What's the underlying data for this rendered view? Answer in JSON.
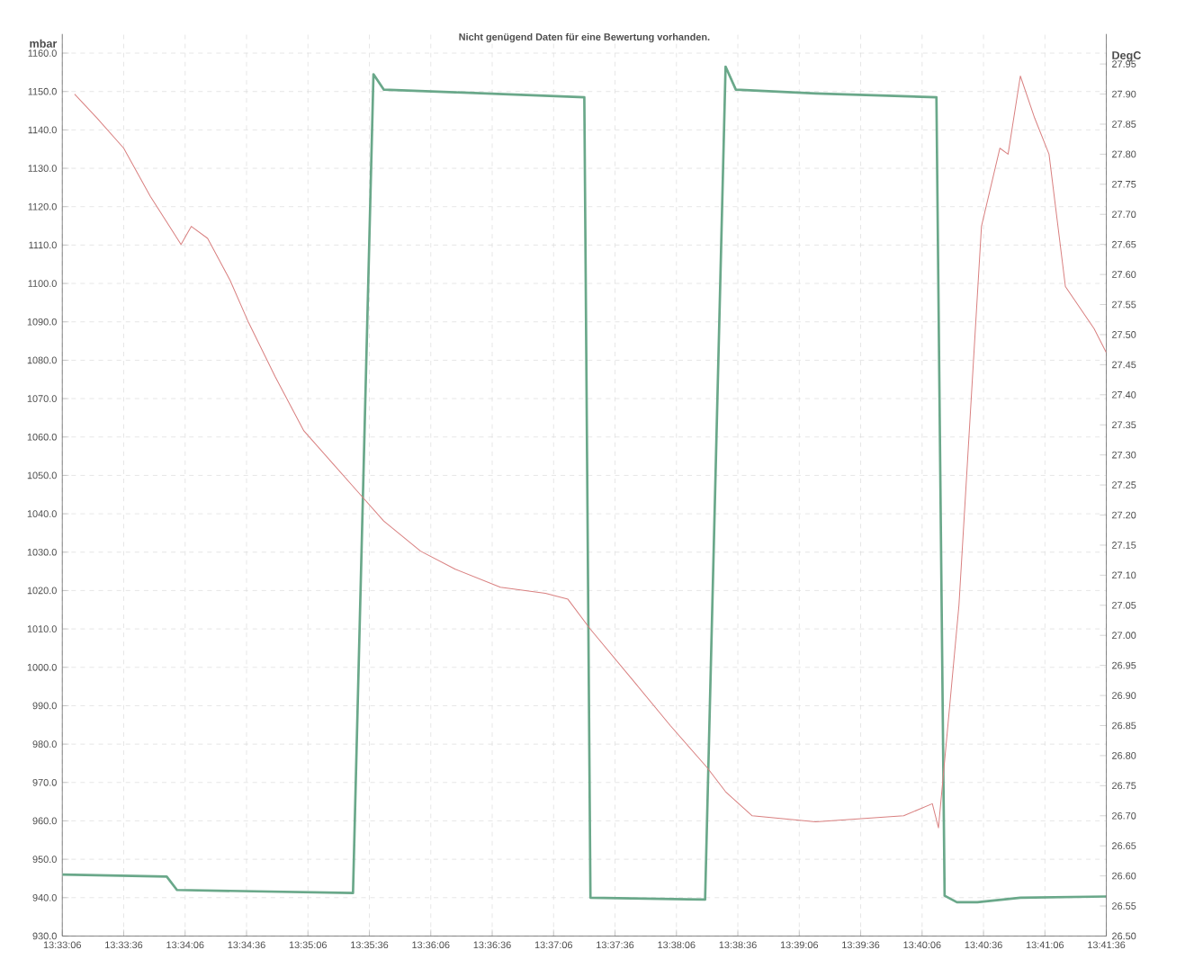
{
  "chart_data": {
    "type": "line",
    "title": "Nicht genügend Daten für eine Bewertung vorhanden.",
    "ylabel": "mbar",
    "y2label": "DegC",
    "grid": true,
    "marker": "none",
    "line_style": "solid",
    "xlim": [
      13.551667,
      13.693333
    ],
    "ylim": [
      930,
      1165
    ],
    "y2lim": [
      26.5,
      28.0
    ],
    "xticks": [
      {
        "value": 13.551667,
        "label": "13:33:06"
      },
      {
        "value": 13.56,
        "label": "13:33:36"
      },
      {
        "value": 13.568333,
        "label": "13:34:06"
      },
      {
        "value": 13.576667,
        "label": "13:34:36"
      },
      {
        "value": 13.585,
        "label": "13:35:06"
      },
      {
        "value": 13.593333,
        "label": "13:35:36"
      },
      {
        "value": 13.601667,
        "label": "13:36:06"
      },
      {
        "value": 13.61,
        "label": "13:36:36"
      },
      {
        "value": 13.618333,
        "label": "13:37:06"
      },
      {
        "value": 13.626667,
        "label": "13:37:36"
      },
      {
        "value": 13.635,
        "label": "13:38:06"
      },
      {
        "value": 13.643333,
        "label": "13:38:36"
      },
      {
        "value": 13.651667,
        "label": "13:39:06"
      },
      {
        "value": 13.66,
        "label": "13:39:36"
      },
      {
        "value": 13.668333,
        "label": "13:40:06"
      },
      {
        "value": 13.676667,
        "label": "13:40:36"
      },
      {
        "value": 13.685,
        "label": "13:41:06"
      },
      {
        "value": 13.693333,
        "label": "13:41:36"
      }
    ],
    "yticks": [
      {
        "value": 930,
        "label": "930.0"
      },
      {
        "value": 940,
        "label": "940.0"
      },
      {
        "value": 950,
        "label": "950.0"
      },
      {
        "value": 960,
        "label": "960.0"
      },
      {
        "value": 970,
        "label": "970.0"
      },
      {
        "value": 980,
        "label": "980.0"
      },
      {
        "value": 990,
        "label": "990.0"
      },
      {
        "value": 1000,
        "label": "1000.0"
      },
      {
        "value": 1010,
        "label": "1010.0"
      },
      {
        "value": 1020,
        "label": "1020.0"
      },
      {
        "value": 1030,
        "label": "1030.0"
      },
      {
        "value": 1040,
        "label": "1040.0"
      },
      {
        "value": 1050,
        "label": "1050.0"
      },
      {
        "value": 1060,
        "label": "1060.0"
      },
      {
        "value": 1070,
        "label": "1070.0"
      },
      {
        "value": 1080,
        "label": "1080.0"
      },
      {
        "value": 1090,
        "label": "1090.0"
      },
      {
        "value": 1100,
        "label": "1100.0"
      },
      {
        "value": 1110,
        "label": "1110.0"
      },
      {
        "value": 1120,
        "label": "1120.0"
      },
      {
        "value": 1130,
        "label": "1130.0"
      },
      {
        "value": 1140,
        "label": "1140.0"
      },
      {
        "value": 1150,
        "label": "1150.0"
      },
      {
        "value": 1160,
        "label": "1160.0"
      }
    ],
    "y2ticks": [
      {
        "value": 26.5,
        "label": "26.50"
      },
      {
        "value": 26.55,
        "label": "26.55"
      },
      {
        "value": 26.6,
        "label": "26.60"
      },
      {
        "value": 26.65,
        "label": "26.65"
      },
      {
        "value": 26.7,
        "label": "26.70"
      },
      {
        "value": 26.75,
        "label": "26.75"
      },
      {
        "value": 26.8,
        "label": "26.80"
      },
      {
        "value": 26.85,
        "label": "26.85"
      },
      {
        "value": 26.9,
        "label": "26.90"
      },
      {
        "value": 26.95,
        "label": "26.95"
      },
      {
        "value": 27.0,
        "label": "27.00"
      },
      {
        "value": 27.05,
        "label": "27.05"
      },
      {
        "value": 27.1,
        "label": "27.10"
      },
      {
        "value": 27.15,
        "label": "27.15"
      },
      {
        "value": 27.2,
        "label": "27.20"
      },
      {
        "value": 27.25,
        "label": "27.25"
      },
      {
        "value": 27.3,
        "label": "27.30"
      },
      {
        "value": 27.35,
        "label": "27.35"
      },
      {
        "value": 27.4,
        "label": "27.40"
      },
      {
        "value": 27.45,
        "label": "27.45"
      },
      {
        "value": 27.5,
        "label": "27.50"
      },
      {
        "value": 27.55,
        "label": "27.55"
      },
      {
        "value": 27.6,
        "label": "27.60"
      },
      {
        "value": 27.65,
        "label": "27.65"
      },
      {
        "value": 27.7,
        "label": "27.70"
      },
      {
        "value": 27.75,
        "label": "27.75"
      },
      {
        "value": 27.8,
        "label": "27.80"
      },
      {
        "value": 27.85,
        "label": "27.85"
      },
      {
        "value": 27.9,
        "label": "27.90"
      },
      {
        "value": 27.95,
        "label": "27.95"
      }
    ],
    "series": [
      {
        "color": "#6aa88a",
        "x": [
          13.551667,
          13.565833,
          13.567222,
          13.591111,
          13.593889,
          13.595278,
          13.605,
          13.6225,
          13.623333,
          13.638889,
          13.641667,
          13.643056,
          13.653889,
          13.670278,
          13.671389,
          13.673056,
          13.675833,
          13.681667,
          13.693333
        ],
        "values": [
          946.0,
          945.5,
          942.0,
          941.2,
          1154.5,
          1150.5,
          1149.8,
          1148.5,
          940.0,
          939.5,
          1156.5,
          1150.5,
          1149.5,
          1148.5,
          940.5,
          938.8,
          938.8,
          940.0,
          940.3
        ]
      },
      {
        "color": "#d98080",
        "axis": "y2",
        "x": [
          13.553333,
          13.556389,
          13.56,
          13.563611,
          13.567778,
          13.569167,
          13.571389,
          13.574444,
          13.576944,
          13.580556,
          13.584444,
          13.588056,
          13.591667,
          13.595278,
          13.600278,
          13.605,
          13.611111,
          13.617222,
          13.620278,
          13.623333,
          13.629444,
          13.634167,
          13.639167,
          13.641667,
          13.645278,
          13.653889,
          13.665833,
          13.669722,
          13.670556,
          13.673333,
          13.676389,
          13.678889,
          13.68,
          13.681667,
          13.683611,
          13.685556,
          13.687778,
          13.691667,
          13.693333
        ],
        "values": [
          27.9,
          27.86,
          27.81,
          27.73,
          27.65,
          27.68,
          27.66,
          27.59,
          27.52,
          27.43,
          27.34,
          27.29,
          27.24,
          27.19,
          27.14,
          27.11,
          27.08,
          27.07,
          27.06,
          27.01,
          26.92,
          26.85,
          26.78,
          26.74,
          26.7,
          26.69,
          26.7,
          26.72,
          26.68,
          27.05,
          27.68,
          27.81,
          27.8,
          27.93,
          27.86,
          27.8,
          27.58,
          27.51,
          27.47
        ]
      }
    ]
  }
}
